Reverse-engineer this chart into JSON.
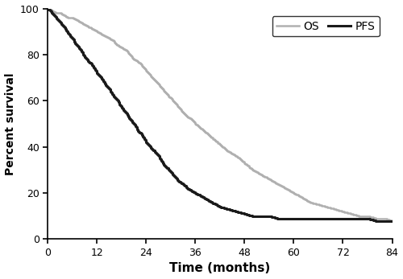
{
  "title": "",
  "xlabel": "Time (months)",
  "ylabel": "Percent survival",
  "xlim": [
    0,
    84
  ],
  "ylim": [
    0,
    100
  ],
  "xticks": [
    0,
    12,
    24,
    36,
    48,
    60,
    72,
    84
  ],
  "yticks": [
    0,
    20,
    40,
    60,
    80,
    100
  ],
  "os_color": "#b0b0b0",
  "pfs_color": "#1a1a1a",
  "os_linewidth": 1.8,
  "pfs_linewidth": 2.2,
  "legend_labels": [
    "OS",
    "PFS"
  ],
  "background_color": "#ffffff",
  "os_x": [
    0,
    1,
    2,
    3,
    4,
    5,
    6,
    7,
    8,
    9,
    10,
    11,
    12,
    13,
    14,
    15,
    16,
    17,
    18,
    19,
    20,
    21,
    22,
    23,
    24,
    25,
    26,
    27,
    28,
    29,
    30,
    31,
    32,
    33,
    34,
    35,
    36,
    38,
    40,
    42,
    44,
    46,
    48,
    50,
    52,
    54,
    56,
    58,
    60,
    62,
    64,
    66,
    68,
    70,
    72,
    74,
    76,
    78,
    80,
    82,
    84
  ],
  "os_y": [
    100,
    99,
    98,
    98,
    97,
    96,
    96,
    95,
    94,
    93,
    92,
    91,
    90,
    89,
    88,
    87,
    86,
    84,
    83,
    82,
    80,
    78,
    77,
    75,
    73,
    71,
    69,
    67,
    65,
    63,
    61,
    59,
    57,
    55,
    53,
    52,
    50,
    47,
    44,
    41,
    38,
    36,
    33,
    30,
    28,
    26,
    24,
    22,
    20,
    18,
    16,
    15,
    14,
    13,
    12,
    11,
    10,
    10,
    9,
    9,
    8
  ],
  "pfs_x": [
    0,
    1,
    2,
    3,
    4,
    5,
    6,
    7,
    8,
    9,
    10,
    11,
    12,
    13,
    14,
    15,
    16,
    17,
    18,
    19,
    20,
    21,
    22,
    23,
    24,
    25,
    26,
    27,
    28,
    29,
    30,
    31,
    32,
    33,
    34,
    35,
    36,
    38,
    40,
    42,
    44,
    46,
    48,
    50,
    52,
    54,
    56,
    58,
    60,
    62,
    64,
    66,
    68,
    70,
    72,
    74,
    76,
    78,
    80,
    82,
    84
  ],
  "pfs_y": [
    100,
    98,
    96,
    94,
    92,
    89,
    87,
    84,
    82,
    79,
    77,
    75,
    72,
    70,
    67,
    65,
    62,
    60,
    57,
    55,
    52,
    50,
    47,
    45,
    42,
    40,
    38,
    36,
    33,
    31,
    29,
    27,
    25,
    24,
    22,
    21,
    20,
    18,
    16,
    14,
    13,
    12,
    11,
    10,
    10,
    10,
    9,
    9,
    9,
    9,
    9,
    9,
    9,
    9,
    9,
    9,
    9,
    9,
    8,
    8,
    8
  ]
}
